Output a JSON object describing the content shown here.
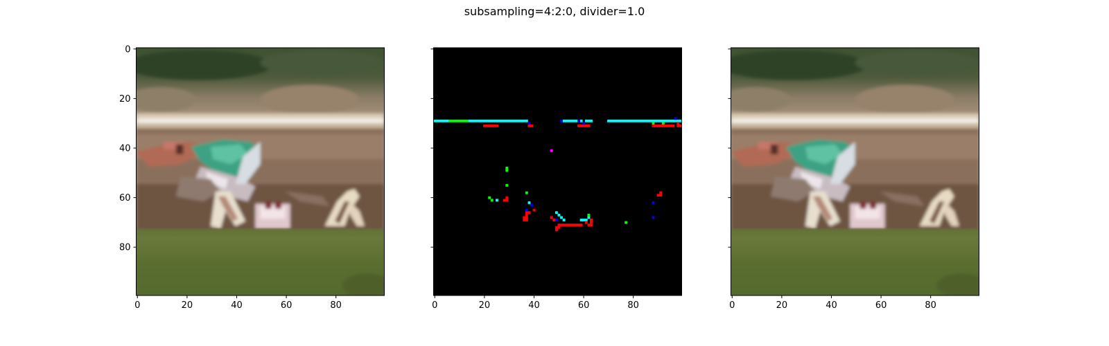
{
  "suptitle": "subsampling=4:2:0, divider=1.0",
  "chart_data": [
    {
      "type": "image",
      "content": "original photo: racehorse and jockey (green silks) in front of a white rail on a grass track",
      "xlim": [
        -0.5,
        99.5
      ],
      "ylim": [
        99.5,
        -0.5
      ],
      "xticks": [
        0,
        20,
        40,
        60,
        80
      ],
      "yticks": [
        0,
        20,
        40,
        60,
        80
      ],
      "show_yticklabels": true
    },
    {
      "type": "image",
      "content": "difference map on black background; colored pixels mark changed values (red, green, blue, cyan, magenta)",
      "xlim": [
        -0.5,
        99.5
      ],
      "ylim": [
        99.5,
        -0.5
      ],
      "xticks": [
        0,
        20,
        40,
        60,
        80
      ],
      "yticks": [
        0,
        20,
        40,
        60,
        80
      ],
      "show_yticklabels": false,
      "diff_pixels": {
        "cyan": [
          [
            0,
            29
          ],
          [
            1,
            29
          ],
          [
            2,
            29
          ],
          [
            3,
            29
          ],
          [
            4,
            29
          ],
          [
            5,
            29
          ],
          [
            14,
            29
          ],
          [
            15,
            29
          ],
          [
            16,
            29
          ],
          [
            17,
            29
          ],
          [
            18,
            29
          ],
          [
            19,
            29
          ],
          [
            20,
            29
          ],
          [
            21,
            29
          ],
          [
            22,
            29
          ],
          [
            23,
            29
          ],
          [
            24,
            29
          ],
          [
            25,
            29
          ],
          [
            26,
            29
          ],
          [
            27,
            29
          ],
          [
            28,
            29
          ],
          [
            29,
            29
          ],
          [
            30,
            29
          ],
          [
            31,
            29
          ],
          [
            32,
            29
          ],
          [
            33,
            29
          ],
          [
            34,
            29
          ],
          [
            35,
            29
          ],
          [
            36,
            29
          ],
          [
            37,
            29
          ],
          [
            52,
            29
          ],
          [
            53,
            29
          ],
          [
            54,
            29
          ],
          [
            55,
            29
          ],
          [
            56,
            29
          ],
          [
            57,
            29
          ],
          [
            59,
            29
          ],
          [
            61,
            29
          ],
          [
            62,
            29
          ],
          [
            63,
            29
          ],
          [
            70,
            29
          ],
          [
            71,
            29
          ],
          [
            72,
            29
          ],
          [
            73,
            29
          ],
          [
            74,
            29
          ],
          [
            75,
            29
          ],
          [
            76,
            29
          ],
          [
            77,
            29
          ],
          [
            78,
            29
          ],
          [
            79,
            29
          ],
          [
            80,
            29
          ],
          [
            81,
            29
          ],
          [
            82,
            29
          ],
          [
            83,
            29
          ],
          [
            84,
            29
          ],
          [
            85,
            29
          ],
          [
            86,
            29
          ],
          [
            87,
            29
          ],
          [
            88,
            29
          ],
          [
            89,
            29
          ],
          [
            90,
            29
          ],
          [
            91,
            29
          ],
          [
            92,
            29
          ],
          [
            93,
            29
          ],
          [
            94,
            29
          ],
          [
            95,
            29
          ],
          [
            96,
            29
          ],
          [
            97,
            29
          ],
          [
            98,
            29
          ],
          [
            99,
            29
          ],
          [
            25,
            61
          ],
          [
            38,
            62
          ],
          [
            49,
            66
          ],
          [
            50,
            67
          ],
          [
            51,
            68
          ],
          [
            52,
            69
          ],
          [
            59,
            69
          ],
          [
            60,
            69
          ],
          [
            61,
            69
          ],
          [
            62,
            68
          ],
          [
            63,
            69
          ]
        ],
        "green": [
          [
            6,
            29
          ],
          [
            7,
            29
          ],
          [
            8,
            29
          ],
          [
            9,
            29
          ],
          [
            10,
            29
          ],
          [
            11,
            29
          ],
          [
            12,
            29
          ],
          [
            13,
            29
          ],
          [
            29,
            48
          ],
          [
            29,
            49
          ],
          [
            29,
            55
          ],
          [
            37,
            58
          ],
          [
            22,
            60
          ],
          [
            23,
            61
          ],
          [
            62,
            67
          ],
          [
            77,
            70
          ],
          [
            88,
            30
          ],
          [
            92,
            30
          ]
        ],
        "red": [
          [
            20,
            31
          ],
          [
            21,
            31
          ],
          [
            22,
            31
          ],
          [
            23,
            31
          ],
          [
            24,
            31
          ],
          [
            25,
            31
          ],
          [
            38,
            31
          ],
          [
            39,
            31
          ],
          [
            58,
            31
          ],
          [
            59,
            31
          ],
          [
            60,
            31
          ],
          [
            61,
            31
          ],
          [
            62,
            31
          ],
          [
            88,
            31
          ],
          [
            89,
            31
          ],
          [
            90,
            31
          ],
          [
            91,
            31
          ],
          [
            92,
            31
          ],
          [
            93,
            31
          ],
          [
            94,
            31
          ],
          [
            95,
            31
          ],
          [
            96,
            31
          ],
          [
            98,
            31
          ],
          [
            99,
            31
          ],
          [
            98,
            30
          ],
          [
            28,
            61
          ],
          [
            29,
            60
          ],
          [
            29,
            61
          ],
          [
            40,
            65
          ],
          [
            37,
            66
          ],
          [
            38,
            66
          ],
          [
            37,
            67
          ],
          [
            36,
            68
          ],
          [
            37,
            68
          ],
          [
            36,
            69
          ],
          [
            37,
            69
          ],
          [
            47,
            68
          ],
          [
            48,
            69
          ],
          [
            50,
            71
          ],
          [
            51,
            71
          ],
          [
            52,
            71
          ],
          [
            53,
            71
          ],
          [
            54,
            71
          ],
          [
            55,
            71
          ],
          [
            56,
            71
          ],
          [
            57,
            71
          ],
          [
            58,
            71
          ],
          [
            59,
            71
          ],
          [
            49,
            72
          ],
          [
            50,
            72
          ],
          [
            49,
            73
          ],
          [
            61,
            70
          ],
          [
            62,
            71
          ],
          [
            63,
            71
          ],
          [
            63,
            70
          ],
          [
            63,
            69
          ],
          [
            90,
            59
          ],
          [
            91,
            59
          ],
          [
            91,
            58
          ]
        ],
        "blue": [
          [
            38,
            30
          ],
          [
            51,
            29
          ],
          [
            58,
            29
          ],
          [
            60,
            30
          ],
          [
            97,
            28
          ],
          [
            39,
            63
          ],
          [
            37,
            65
          ],
          [
            49,
            69
          ],
          [
            88,
            62
          ],
          [
            88,
            68
          ]
        ],
        "magenta": [
          [
            47,
            41
          ]
        ]
      }
    },
    {
      "type": "image",
      "content": "reconstructed photo after 4:2:0 chroma subsampling (visually identical to the first panel)",
      "xlim": [
        -0.5,
        99.5
      ],
      "ylim": [
        99.5,
        -0.5
      ],
      "xticks": [
        0,
        20,
        40,
        60,
        80
      ],
      "yticks": [
        0,
        20,
        40,
        60,
        80
      ],
      "show_yticklabels": false
    }
  ]
}
